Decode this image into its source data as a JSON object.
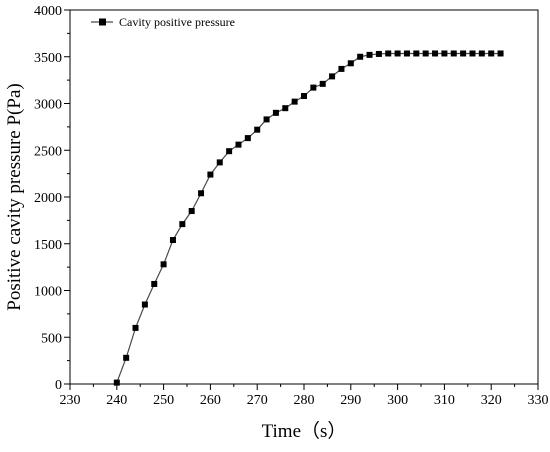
{
  "chart_data": {
    "type": "line",
    "xlabel": "Time（s）",
    "ylabel": "Positive cavity pressure P(Pa)",
    "xlim": [
      230,
      330
    ],
    "ylim": [
      0,
      4000
    ],
    "xticks": [
      230,
      240,
      250,
      260,
      270,
      280,
      290,
      300,
      310,
      320,
      330
    ],
    "yticks": [
      0,
      500,
      1000,
      1500,
      2000,
      2500,
      3000,
      3500,
      4000
    ],
    "grid": false,
    "legend_position": "top-left",
    "marker": "square",
    "line_color": "#4a4a4a",
    "marker_color": "#000000",
    "series": [
      {
        "name": "Cavity positive pressure",
        "x": [
          240,
          242,
          244,
          246,
          248,
          250,
          252,
          254,
          256,
          258,
          260,
          262,
          264,
          266,
          268,
          270,
          272,
          274,
          276,
          278,
          280,
          282,
          284,
          286,
          288,
          290,
          292,
          294,
          296,
          298,
          300,
          302,
          304,
          306,
          308,
          310,
          312,
          314,
          316,
          318,
          320,
          322
        ],
        "y": [
          15,
          280,
          600,
          850,
          1070,
          1280,
          1540,
          1710,
          1850,
          2040,
          2240,
          2370,
          2490,
          2560,
          2630,
          2720,
          2830,
          2900,
          2950,
          3020,
          3080,
          3170,
          3210,
          3290,
          3370,
          3430,
          3500,
          3520,
          3530,
          3535,
          3535,
          3535,
          3535,
          3535,
          3535,
          3535,
          3535,
          3535,
          3535,
          3535,
          3535,
          3535
        ]
      }
    ]
  }
}
